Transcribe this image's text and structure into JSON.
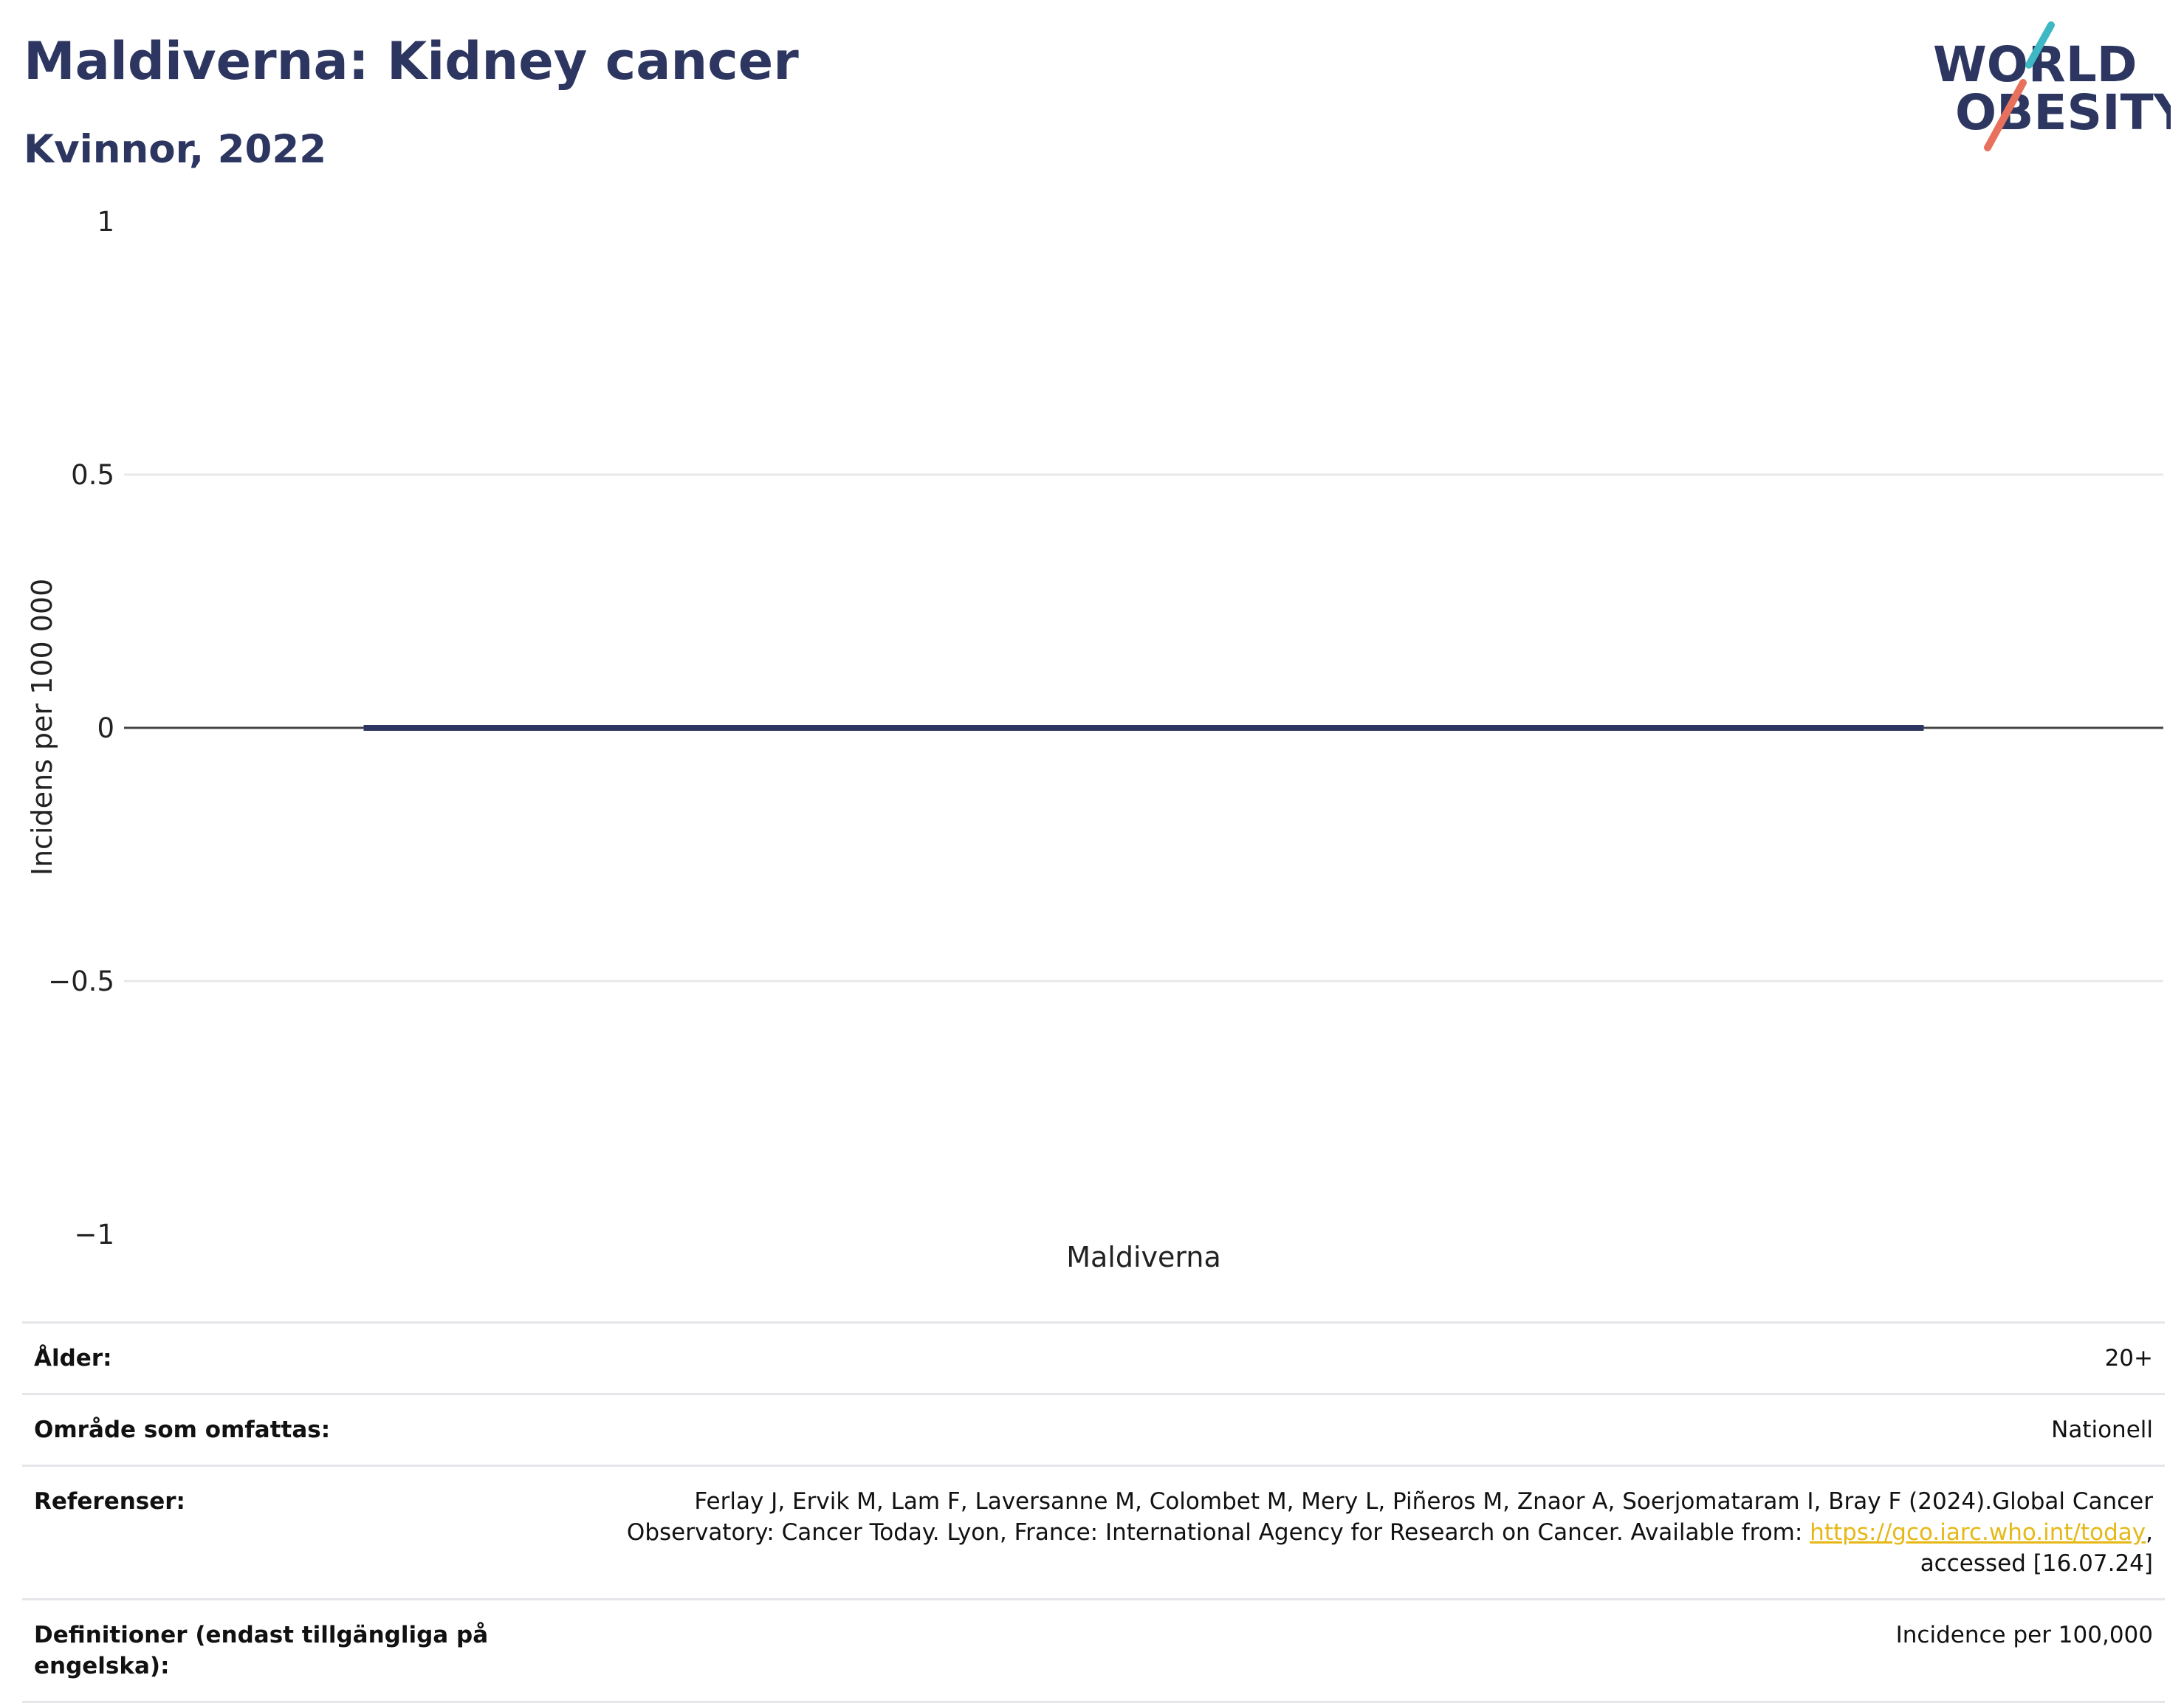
{
  "header": {
    "title": "Maldiverna: Kidney cancer",
    "subtitle": "Kvinnor, 2022"
  },
  "logo": {
    "line1": "WORLD",
    "line2": "OBESITY",
    "accent_teal": "#3db8c4",
    "accent_coral": "#e8715d",
    "text_color": "#2c3660"
  },
  "chart_data": {
    "type": "bar",
    "categories": [
      "Maldiverna"
    ],
    "values": [
      0
    ],
    "ylabel": "Incidens per 100 000",
    "xlabel": "",
    "ylim": [
      -1,
      1
    ],
    "yticks": [
      1,
      0.5,
      0,
      -0.5,
      -1
    ],
    "ytick_labels": [
      "1",
      "0.5",
      "0",
      "−0.5",
      "−1"
    ],
    "grid": true,
    "bar_color": "#2c3660"
  },
  "info": {
    "rows": [
      {
        "label": "Ålder:",
        "value": "20+"
      },
      {
        "label": "Område som omfattas:",
        "value": "Nationell"
      }
    ],
    "references": {
      "label": "Referenser:",
      "text_line1": "Ferlay J, Ervik M, Lam F, Laversanne M, Colombet M, Mery L, Piñeros M, Znaor A, Soerjomataram I, Bray F (2024).Global Cancer",
      "text_line2": "Observatory: Cancer Today. Lyon, France: International Agency for Research on Cancer. Available from: ",
      "link": "https://gco.iarc.who.int/today",
      "text_after_link": ",",
      "text_line3": "accessed [16.07.24]"
    },
    "definitions": {
      "label_line1": "Definitioner (endast tillgängliga på",
      "label_line2": "engelska):",
      "value": "Incidence per 100,000"
    }
  }
}
